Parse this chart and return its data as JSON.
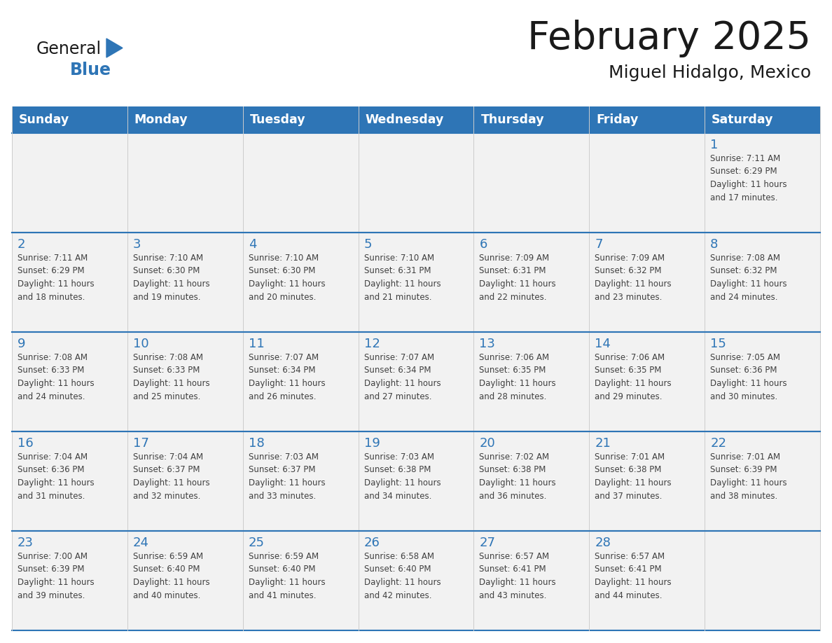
{
  "title": "February 2025",
  "subtitle": "Miguel Hidalgo, Mexico",
  "header_bg": "#2E75B6",
  "header_text_color": "#FFFFFF",
  "cell_bg": "#F2F2F2",
  "cell_bg2": "#FFFFFF",
  "cell_border_top_color": "#2E75B6",
  "cell_border_other_color": "#CCCCCC",
  "day_number_color": "#2E75B6",
  "cell_text_color": "#404040",
  "days_of_week": [
    "Sunday",
    "Monday",
    "Tuesday",
    "Wednesday",
    "Thursday",
    "Friday",
    "Saturday"
  ],
  "logo_general_color": "#1a1a1a",
  "logo_blue_color": "#2E75B6",
  "title_fontsize": 40,
  "subtitle_fontsize": 18,
  "weeks": [
    [
      {
        "day": null,
        "info": null
      },
      {
        "day": null,
        "info": null
      },
      {
        "day": null,
        "info": null
      },
      {
        "day": null,
        "info": null
      },
      {
        "day": null,
        "info": null
      },
      {
        "day": null,
        "info": null
      },
      {
        "day": 1,
        "info": "Sunrise: 7:11 AM\nSunset: 6:29 PM\nDaylight: 11 hours\nand 17 minutes."
      }
    ],
    [
      {
        "day": 2,
        "info": "Sunrise: 7:11 AM\nSunset: 6:29 PM\nDaylight: 11 hours\nand 18 minutes."
      },
      {
        "day": 3,
        "info": "Sunrise: 7:10 AM\nSunset: 6:30 PM\nDaylight: 11 hours\nand 19 minutes."
      },
      {
        "day": 4,
        "info": "Sunrise: 7:10 AM\nSunset: 6:30 PM\nDaylight: 11 hours\nand 20 minutes."
      },
      {
        "day": 5,
        "info": "Sunrise: 7:10 AM\nSunset: 6:31 PM\nDaylight: 11 hours\nand 21 minutes."
      },
      {
        "day": 6,
        "info": "Sunrise: 7:09 AM\nSunset: 6:31 PM\nDaylight: 11 hours\nand 22 minutes."
      },
      {
        "day": 7,
        "info": "Sunrise: 7:09 AM\nSunset: 6:32 PM\nDaylight: 11 hours\nand 23 minutes."
      },
      {
        "day": 8,
        "info": "Sunrise: 7:08 AM\nSunset: 6:32 PM\nDaylight: 11 hours\nand 24 minutes."
      }
    ],
    [
      {
        "day": 9,
        "info": "Sunrise: 7:08 AM\nSunset: 6:33 PM\nDaylight: 11 hours\nand 24 minutes."
      },
      {
        "day": 10,
        "info": "Sunrise: 7:08 AM\nSunset: 6:33 PM\nDaylight: 11 hours\nand 25 minutes."
      },
      {
        "day": 11,
        "info": "Sunrise: 7:07 AM\nSunset: 6:34 PM\nDaylight: 11 hours\nand 26 minutes."
      },
      {
        "day": 12,
        "info": "Sunrise: 7:07 AM\nSunset: 6:34 PM\nDaylight: 11 hours\nand 27 minutes."
      },
      {
        "day": 13,
        "info": "Sunrise: 7:06 AM\nSunset: 6:35 PM\nDaylight: 11 hours\nand 28 minutes."
      },
      {
        "day": 14,
        "info": "Sunrise: 7:06 AM\nSunset: 6:35 PM\nDaylight: 11 hours\nand 29 minutes."
      },
      {
        "day": 15,
        "info": "Sunrise: 7:05 AM\nSunset: 6:36 PM\nDaylight: 11 hours\nand 30 minutes."
      }
    ],
    [
      {
        "day": 16,
        "info": "Sunrise: 7:04 AM\nSunset: 6:36 PM\nDaylight: 11 hours\nand 31 minutes."
      },
      {
        "day": 17,
        "info": "Sunrise: 7:04 AM\nSunset: 6:37 PM\nDaylight: 11 hours\nand 32 minutes."
      },
      {
        "day": 18,
        "info": "Sunrise: 7:03 AM\nSunset: 6:37 PM\nDaylight: 11 hours\nand 33 minutes."
      },
      {
        "day": 19,
        "info": "Sunrise: 7:03 AM\nSunset: 6:38 PM\nDaylight: 11 hours\nand 34 minutes."
      },
      {
        "day": 20,
        "info": "Sunrise: 7:02 AM\nSunset: 6:38 PM\nDaylight: 11 hours\nand 36 minutes."
      },
      {
        "day": 21,
        "info": "Sunrise: 7:01 AM\nSunset: 6:38 PM\nDaylight: 11 hours\nand 37 minutes."
      },
      {
        "day": 22,
        "info": "Sunrise: 7:01 AM\nSunset: 6:39 PM\nDaylight: 11 hours\nand 38 minutes."
      }
    ],
    [
      {
        "day": 23,
        "info": "Sunrise: 7:00 AM\nSunset: 6:39 PM\nDaylight: 11 hours\nand 39 minutes."
      },
      {
        "day": 24,
        "info": "Sunrise: 6:59 AM\nSunset: 6:40 PM\nDaylight: 11 hours\nand 40 minutes."
      },
      {
        "day": 25,
        "info": "Sunrise: 6:59 AM\nSunset: 6:40 PM\nDaylight: 11 hours\nand 41 minutes."
      },
      {
        "day": 26,
        "info": "Sunrise: 6:58 AM\nSunset: 6:40 PM\nDaylight: 11 hours\nand 42 minutes."
      },
      {
        "day": 27,
        "info": "Sunrise: 6:57 AM\nSunset: 6:41 PM\nDaylight: 11 hours\nand 43 minutes."
      },
      {
        "day": 28,
        "info": "Sunrise: 6:57 AM\nSunset: 6:41 PM\nDaylight: 11 hours\nand 44 minutes."
      },
      {
        "day": null,
        "info": null
      }
    ]
  ]
}
